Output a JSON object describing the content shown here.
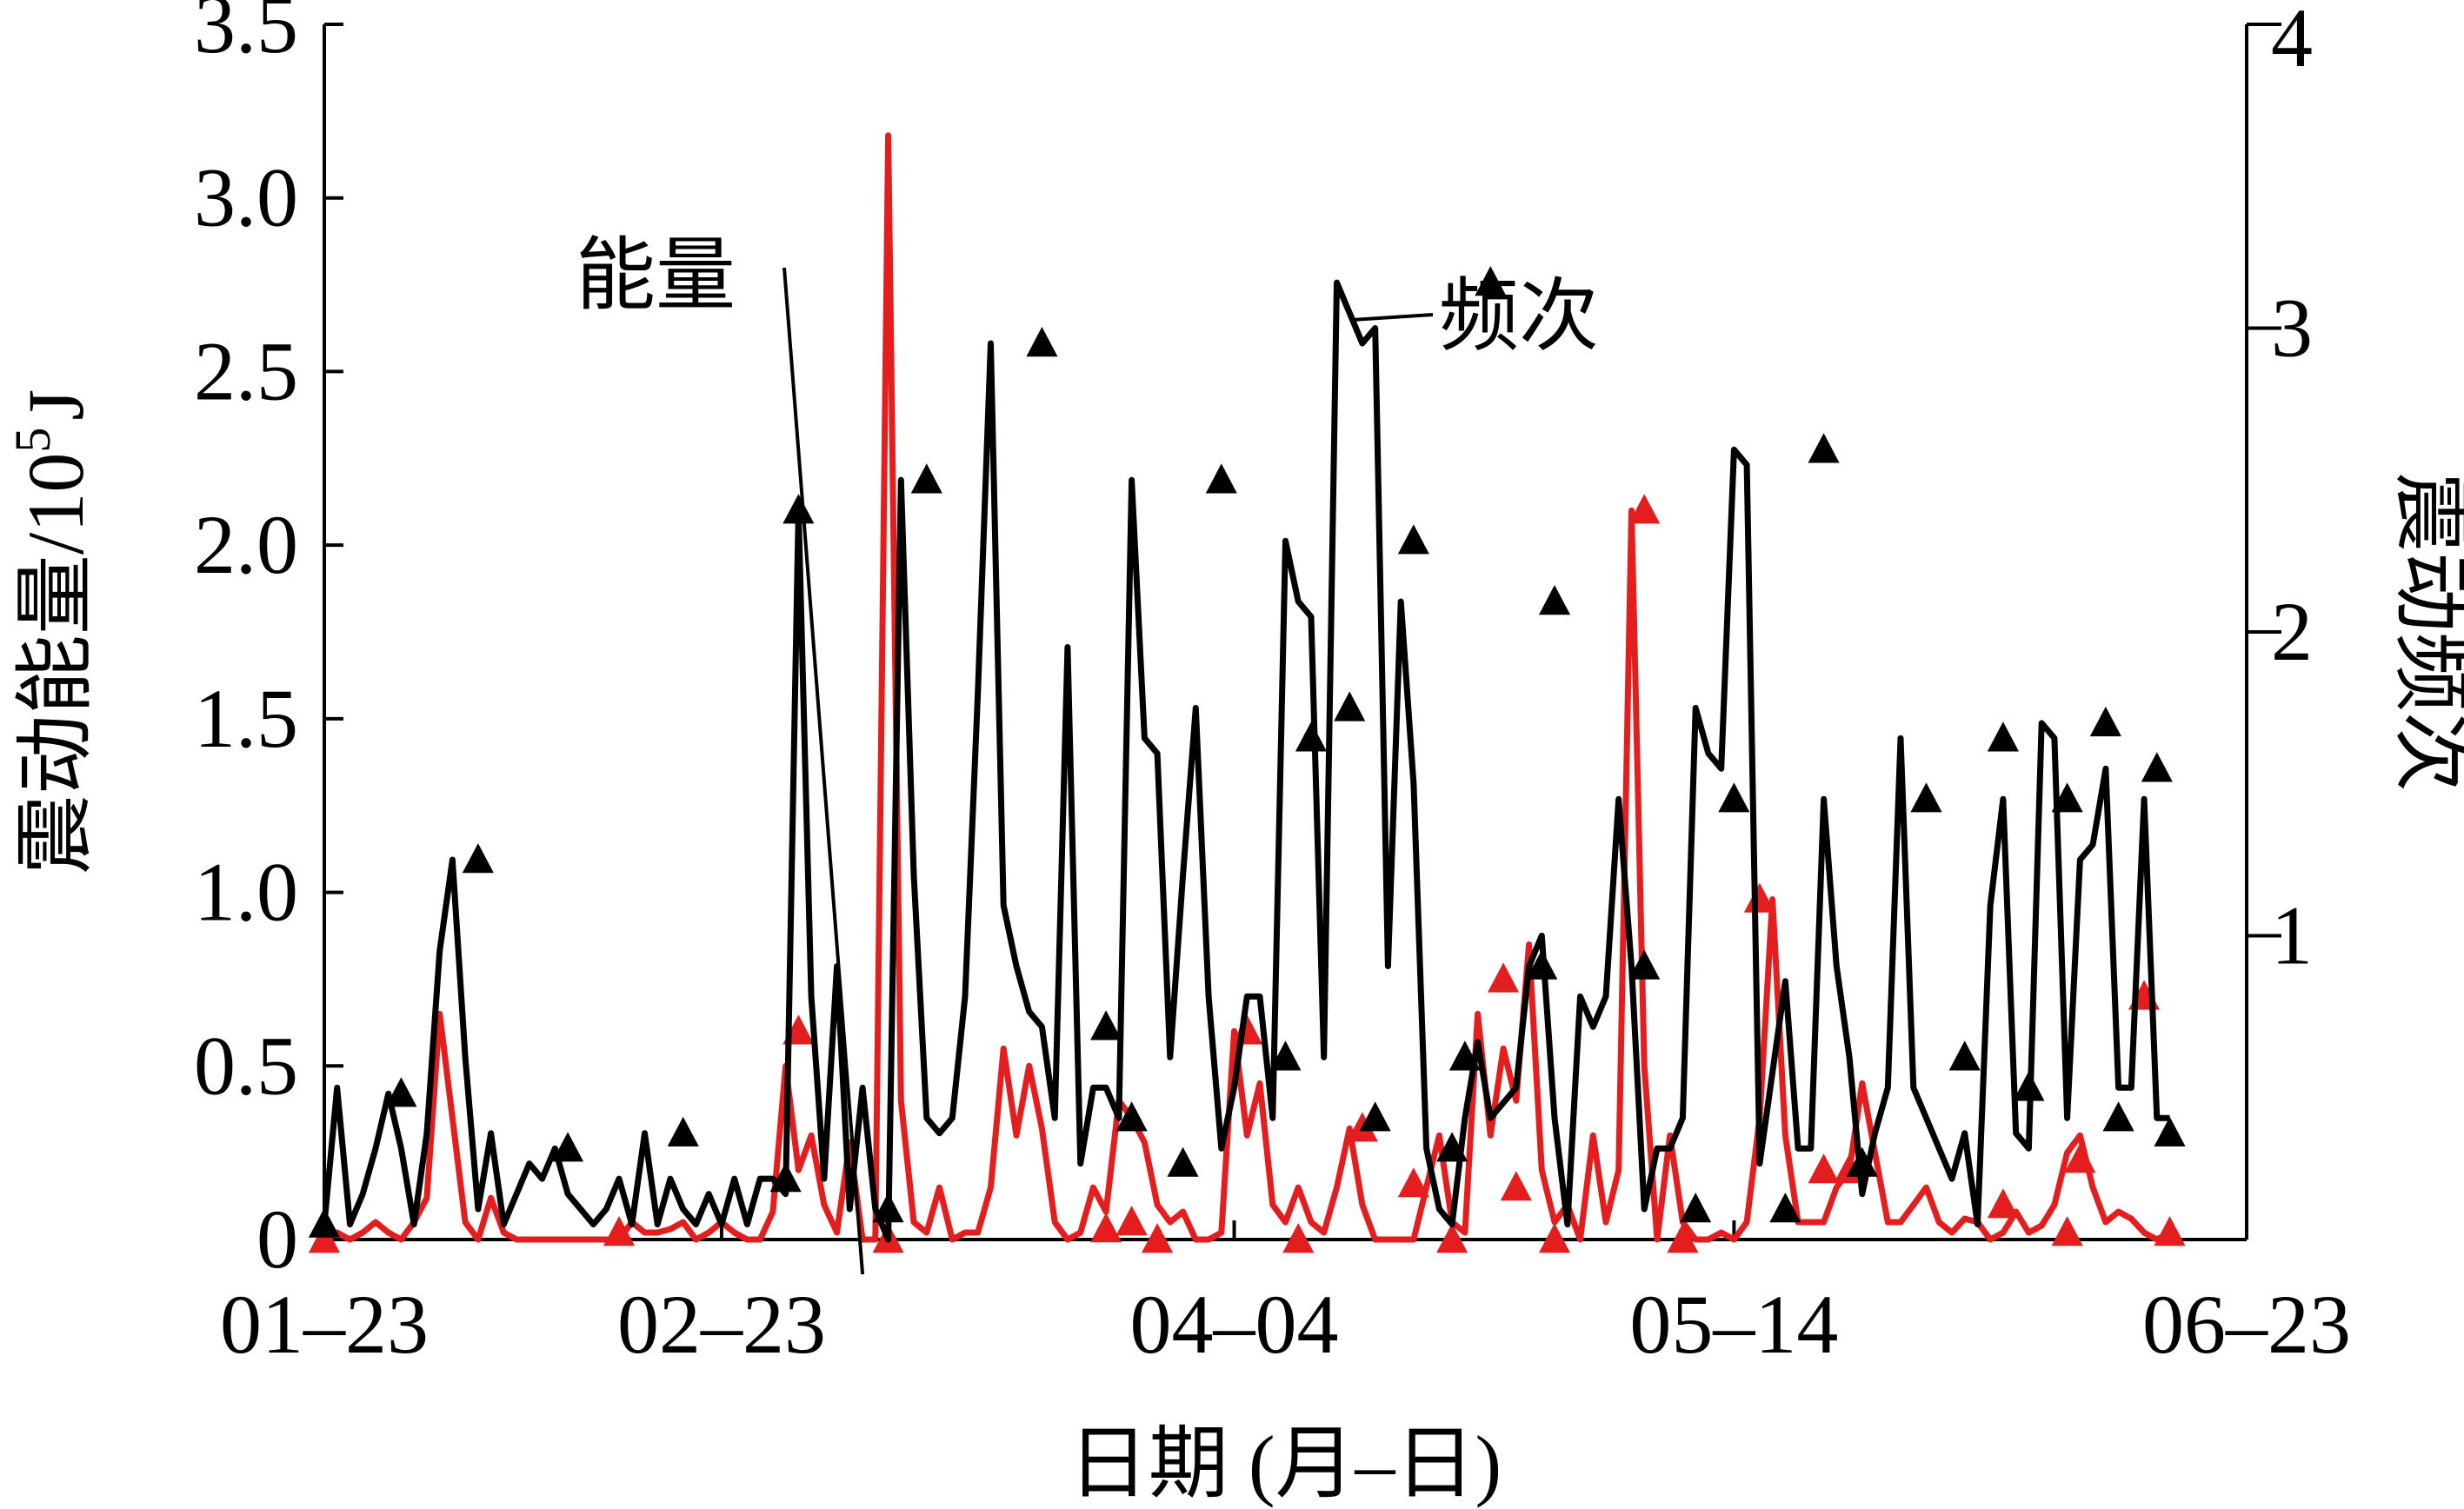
{
  "chart_data": {
    "type": "line",
    "xlabel": "日期 (月–日)",
    "ylabel_left_text": "震动能量/10",
    "ylabel_left_sup": "5",
    "ylabel_left_unit": "J",
    "ylabel_right": "震动频次",
    "x_tick_labels": [
      "01–23",
      "02–23",
      "04–04",
      "05–14",
      "06–23"
    ],
    "x_tick_days": [
      0,
      31,
      71,
      110,
      150
    ],
    "xlim_days": [
      0,
      150
    ],
    "y_left_ticks": [
      0,
      0.5,
      1.0,
      1.5,
      2.0,
      2.5,
      3.0,
      3.5
    ],
    "y_left_tick_labels": [
      "0",
      "0.5",
      "1.0",
      "1.5",
      "2.0",
      "2.5",
      "3.0",
      "3.5"
    ],
    "ylim_left": [
      0,
      3.5
    ],
    "y_right_ticks": [
      1,
      2,
      3,
      4
    ],
    "y_right_tick_labels": [
      "1",
      "2",
      "3",
      "4"
    ],
    "ylim_right": [
      0,
      4
    ],
    "grid": false,
    "annotations": [
      {
        "text": "能量",
        "series": "energy",
        "target_day": 42
      },
      {
        "text": "频次",
        "series": "frequency",
        "target_day": 80
      }
    ],
    "series": [
      {
        "key": "energy",
        "axis": "left",
        "color": "#e41e1e",
        "marker": "triangle",
        "x": [
          0,
          1,
          2,
          3,
          4,
          5,
          6,
          7,
          8,
          9,
          10,
          11,
          12,
          13,
          14,
          15,
          16,
          17,
          18,
          19,
          20,
          21,
          22,
          23,
          24,
          25,
          26,
          27,
          28,
          29,
          30,
          31,
          32,
          33,
          34,
          35,
          36,
          37,
          38,
          39,
          40,
          41,
          42,
          43,
          44,
          45,
          46,
          47,
          48,
          49,
          50,
          51,
          52,
          53,
          54,
          55,
          56,
          57,
          58,
          59,
          60,
          61,
          62,
          63,
          64,
          65,
          66,
          67,
          68,
          69,
          70,
          71,
          72,
          73,
          74,
          75,
          76,
          77,
          78,
          79,
          80,
          81,
          82,
          83,
          84,
          85,
          86,
          87,
          88,
          89,
          90,
          91,
          92,
          93,
          94,
          95,
          96,
          97,
          98,
          99,
          100,
          101,
          102,
          103,
          104,
          105,
          106,
          107,
          108,
          109,
          110,
          111,
          112,
          113,
          114,
          115,
          116,
          117,
          118,
          119,
          120,
          121,
          122,
          123,
          124,
          125,
          126,
          127,
          128,
          129,
          130,
          131,
          132,
          133,
          134,
          135,
          136,
          137,
          138,
          139,
          140,
          141,
          142,
          143,
          144
        ],
        "y": [
          0,
          0.02,
          0,
          0.02,
          0.05,
          0.02,
          0,
          0.05,
          0.12,
          0.65,
          0.35,
          0.05,
          0,
          0.12,
          0.02,
          0,
          0,
          0,
          0,
          0,
          0,
          0,
          0,
          0,
          0.05,
          0.02,
          0.02,
          0.03,
          0.05,
          0,
          0.02,
          0.05,
          0.02,
          0,
          0,
          0.08,
          0.5,
          0.2,
          0.3,
          0.1,
          0.02,
          0.28,
          0,
          0,
          3.18,
          0.4,
          0.05,
          0.02,
          0.15,
          0,
          0.02,
          0.02,
          0.15,
          0.55,
          0.3,
          0.5,
          0.32,
          0.05,
          0,
          0.02,
          0.15,
          0.08,
          0.4,
          0.35,
          0.28,
          0.1,
          0.05,
          0.08,
          0,
          0,
          0.02,
          0.6,
          0.3,
          0.45,
          0.1,
          0.05,
          0.15,
          0.05,
          0.02,
          0.15,
          0.32,
          0.1,
          0,
          0,
          0,
          0,
          0.15,
          0.3,
          0.05,
          0.02,
          0.65,
          0.3,
          0.55,
          0.4,
          0.85,
          0.2,
          0.05,
          0.1,
          0,
          0.3,
          0.05,
          0.2,
          2.1,
          0.5,
          0,
          0.3,
          0.05,
          0,
          0,
          0.02,
          0,
          0.05,
          0.35,
          0.98,
          0.3,
          0.05,
          0.05,
          0.05,
          0.15,
          0.2,
          0.45,
          0.25,
          0.05,
          0.05,
          0.1,
          0.15,
          0.05,
          0.02,
          0.06,
          0.05,
          0,
          0.02,
          0.08,
          0.02,
          0.04,
          0.1,
          0.25,
          0.3,
          0.15,
          0.05,
          0.08,
          0.06,
          0.02,
          0,
          0.02
        ],
        "marker_days": [
          0,
          23,
          37,
          44,
          61,
          63,
          65,
          72,
          76,
          81,
          85,
          88,
          92,
          93,
          96,
          103,
          106,
          112,
          117,
          119,
          131,
          136,
          137,
          142,
          144
        ],
        "marker_values": [
          0,
          0.02,
          0.6,
          0,
          0.03,
          0.05,
          0,
          0.6,
          0,
          0.32,
          0.16,
          0,
          0.75,
          0.15,
          0,
          2.1,
          0,
          0.98,
          0.2,
          0.2,
          0.1,
          0.02,
          0.23,
          0.7,
          0.02
        ]
      },
      {
        "key": "frequency",
        "axis": "right",
        "color": "#000000",
        "marker": "triangle",
        "x": [
          0,
          1,
          2,
          3,
          4,
          5,
          6,
          7,
          8,
          9,
          10,
          11,
          12,
          13,
          14,
          15,
          16,
          17,
          18,
          19,
          20,
          21,
          22,
          23,
          24,
          25,
          26,
          27,
          28,
          29,
          30,
          31,
          32,
          33,
          34,
          35,
          36,
          37,
          38,
          39,
          40,
          41,
          42,
          43,
          44,
          45,
          46,
          47,
          48,
          49,
          50,
          51,
          52,
          53,
          54,
          55,
          56,
          57,
          58,
          59,
          60,
          61,
          62,
          63,
          64,
          65,
          66,
          67,
          68,
          69,
          70,
          71,
          72,
          73,
          74,
          75,
          76,
          77,
          78,
          79,
          80,
          81,
          82,
          83,
          84,
          85,
          86,
          87,
          88,
          89,
          90,
          91,
          92,
          93,
          94,
          95,
          96,
          97,
          98,
          99,
          100,
          101,
          102,
          103,
          104,
          105,
          106,
          107,
          108,
          109,
          110,
          111,
          112,
          113,
          114,
          115,
          116,
          117,
          118,
          119,
          120,
          121,
          122,
          123,
          124,
          125,
          126,
          127,
          128,
          129,
          130,
          131,
          132,
          133,
          134,
          135,
          136,
          137,
          138,
          139,
          140,
          141,
          142,
          143,
          144
        ],
        "y": [
          0.05,
          0.5,
          0.05,
          0.15,
          0.3,
          0.48,
          0.3,
          0.05,
          0.35,
          0.95,
          1.25,
          0.6,
          0.1,
          0.35,
          0.05,
          0.15,
          0.25,
          0.2,
          0.3,
          0.15,
          0.1,
          0.05,
          0.1,
          0.2,
          0.05,
          0.35,
          0.05,
          0.2,
          0.1,
          0.05,
          0.15,
          0.05,
          0.2,
          0.05,
          0.2,
          0.2,
          0.15,
          2.4,
          0.8,
          0.2,
          0.9,
          0.1,
          0.5,
          0.1,
          0,
          2.5,
          1.2,
          0.4,
          0.35,
          0.4,
          0.8,
          1.8,
          2.95,
          1.1,
          0.9,
          0.75,
          0.7,
          0.4,
          1.95,
          0.25,
          0.5,
          0.5,
          0.4,
          2.5,
          1.65,
          1.6,
          0.6,
          1.2,
          1.75,
          0.8,
          0.3,
          0.5,
          0.8,
          0.8,
          0.4,
          2.3,
          2.1,
          2.05,
          0.6,
          3.15,
          3.05,
          2.95,
          3.0,
          0.9,
          2.1,
          1.5,
          0.3,
          0.1,
          0.05,
          0.4,
          0.65,
          0.4,
          0.45,
          0.5,
          0.9,
          1.0,
          0.4,
          0.05,
          0.8,
          0.7,
          0.8,
          1.45,
          0.9,
          0.1,
          0.3,
          0.3,
          0.4,
          1.75,
          1.6,
          1.55,
          2.6,
          2.55,
          0.25,
          0.55,
          0.85,
          0.3,
          0.3,
          1.45,
          0.9,
          0.6,
          0.15,
          0.35,
          0.5,
          1.65,
          0.5,
          0.4,
          0.3,
          0.2,
          0.35,
          0.05,
          1.1,
          1.45,
          0.35,
          0.3,
          1.7,
          1.65,
          0.4,
          1.25,
          1.3,
          1.55,
          0.5,
          0.5,
          1.45,
          0.4,
          0.4
        ],
        "marker_days": [
          0,
          6,
          12,
          19,
          28,
          36,
          37,
          44,
          47,
          56,
          61,
          63,
          67,
          70,
          75,
          77,
          80,
          82,
          85,
          88,
          89,
          91,
          95,
          96,
          103,
          107,
          110,
          114,
          117,
          120,
          125,
          128,
          131,
          133,
          136,
          139,
          140,
          143,
          144
        ],
        "marker_values": [
          0.05,
          0.48,
          1.25,
          0.3,
          0.35,
          0.2,
          2.4,
          0.1,
          2.5,
          2.95,
          0.7,
          0.4,
          0.25,
          2.5,
          0.6,
          1.65,
          1.75,
          0.4,
          2.3,
          0.3,
          0.6,
          3.15,
          0.9,
          2.1,
          0.9,
          0.1,
          1.45,
          0.1,
          2.6,
          0.25,
          1.45,
          0.6,
          1.65,
          0.5,
          1.45,
          1.7,
          0.4,
          1.55,
          0.35
        ]
      }
    ]
  }
}
